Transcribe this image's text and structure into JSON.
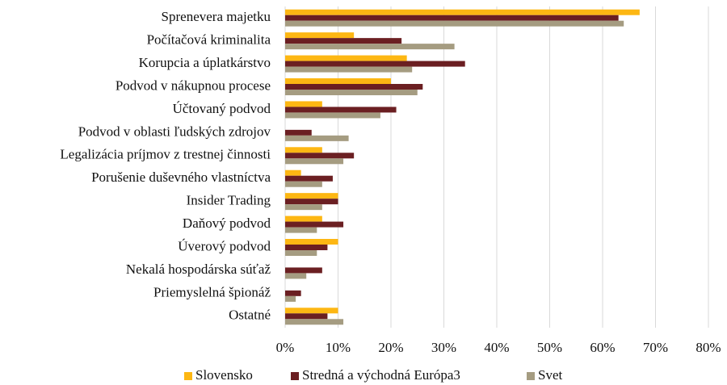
{
  "chart_data": {
    "type": "hbar",
    "categories": [
      "Sprenevera majetku",
      "Počítačová kriminalita",
      "Korupcia a úplatkárstvo",
      "Podvod v nákupnou procese",
      "Účtovaný podvod",
      "Podvod v oblasti ľudských zdrojov",
      "Legalizácia príjmov z trestnej činnosti",
      "Porušenie duševného vlastníctva",
      "Insider Trading",
      "Daňový podvod",
      "Úverový podvod",
      "Nekalá hospodárska súťaž",
      "Priemyslelná špionáž",
      "Ostatné"
    ],
    "series": [
      {
        "name": "Slovensko",
        "color": "#fdb713",
        "values": [
          67,
          13,
          23,
          20,
          7,
          0,
          7,
          3,
          10,
          7,
          10,
          0,
          0,
          10
        ]
      },
      {
        "name": "Stredná a východná Európa3",
        "color": "#6b1f22",
        "values": [
          63,
          22,
          34,
          26,
          21,
          5,
          13,
          9,
          10,
          11,
          8,
          7,
          3,
          8
        ]
      },
      {
        "name": "Svet",
        "color": "#a59c81",
        "values": [
          64,
          32,
          24,
          25,
          18,
          12,
          11,
          7,
          7,
          6,
          6,
          4,
          2,
          11
        ]
      }
    ],
    "xlim": [
      0,
      80
    ],
    "xticks": [
      {
        "value": 0,
        "label": "0%"
      },
      {
        "value": 10,
        "label": "10%"
      },
      {
        "value": 20,
        "label": "20%"
      },
      {
        "value": 30,
        "label": "30%"
      },
      {
        "value": 40,
        "label": "40%"
      },
      {
        "value": 50,
        "label": "50%"
      },
      {
        "value": 60,
        "label": "60%"
      },
      {
        "value": 70,
        "label": "70%"
      },
      {
        "value": 80,
        "label": "80%"
      }
    ],
    "grid": true,
    "legend": "bottom"
  }
}
